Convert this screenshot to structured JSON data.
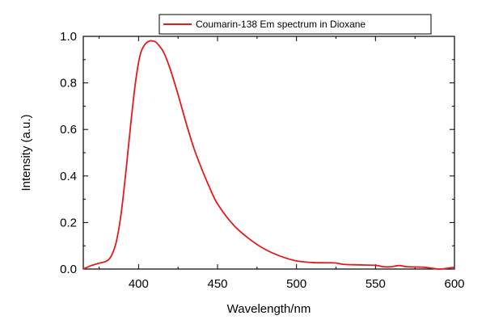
{
  "chart_data": {
    "type": "line",
    "xlabel": "Wavelength/nm",
    "ylabel": "Intensity (a.u.)",
    "xlim": [
      365,
      600
    ],
    "ylim": [
      0.0,
      1.0
    ],
    "x_ticks": [
      400,
      450,
      500,
      550,
      600
    ],
    "y_ticks": [
      0.0,
      0.2,
      0.4,
      0.6,
      0.8,
      1.0
    ],
    "x_tick_labels": [
      "400",
      "450",
      "500",
      "550",
      "600"
    ],
    "y_tick_labels": [
      "0.0",
      "0.2",
      "0.4",
      "0.6",
      "0.8",
      "1.0"
    ],
    "grid": false,
    "legend_position": "top-right",
    "series": [
      {
        "name": "Coumarin-138 Em spectrum in Dioxane",
        "color": "#e31a1c",
        "x": [
          365,
          370,
          375,
          380,
          383,
          386,
          389,
          392,
          395,
          398,
          401,
          404,
          407,
          409,
          411,
          413,
          416,
          420,
          425,
          430,
          435,
          440,
          445,
          450,
          460,
          470,
          480,
          490,
          500,
          510,
          520,
          525,
          530,
          540,
          550,
          555,
          560,
          565,
          570,
          580,
          590,
          595,
          600
        ],
        "y": [
          0.0,
          0.015,
          0.025,
          0.035,
          0.06,
          0.12,
          0.24,
          0.42,
          0.62,
          0.8,
          0.92,
          0.965,
          0.98,
          0.98,
          0.975,
          0.96,
          0.93,
          0.86,
          0.75,
          0.63,
          0.52,
          0.43,
          0.35,
          0.28,
          0.19,
          0.13,
          0.085,
          0.055,
          0.035,
          0.028,
          0.027,
          0.026,
          0.02,
          0.018,
          0.016,
          0.01,
          0.01,
          0.015,
          0.01,
          0.008,
          0.0,
          0.003,
          0.008
        ]
      }
    ]
  }
}
